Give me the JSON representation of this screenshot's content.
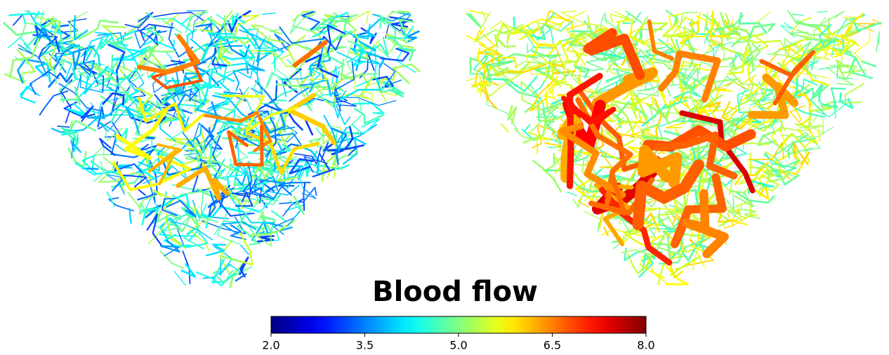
{
  "colorbar": {
    "title": "Blood flow",
    "colormap": "jet",
    "lim": [
      2.0,
      8.0
    ],
    "ticks": [
      {
        "value": 2.0,
        "label": "2.0"
      },
      {
        "value": 3.5,
        "label": "3.5"
      },
      {
        "value": 5.0,
        "label": "5.0"
      },
      {
        "value": 6.5,
        "label": "6.5"
      },
      {
        "value": 8.0,
        "label": "8.0"
      }
    ]
  }
}
